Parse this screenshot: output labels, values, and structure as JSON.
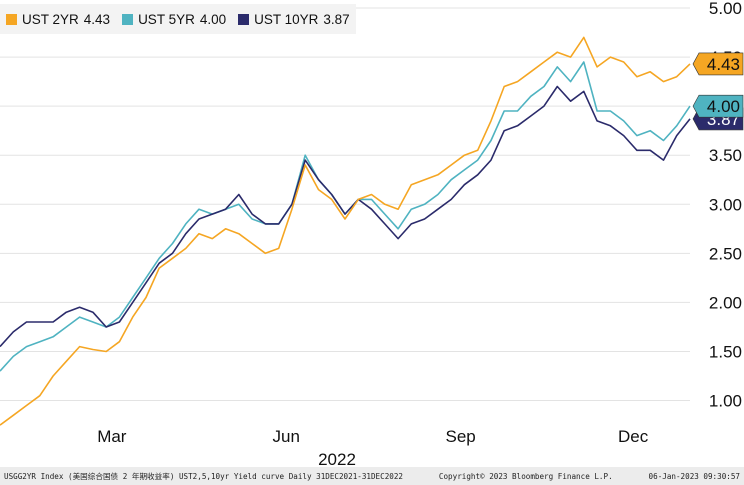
{
  "chart_data": {
    "type": "line",
    "title": "",
    "xlabel": "2022",
    "ylabel": "",
    "ylim": [
      0.7,
      5.0
    ],
    "yticks": [
      1.0,
      1.5,
      2.0,
      2.5,
      3.0,
      3.5,
      4.0,
      4.5,
      5.0
    ],
    "ytick_labels": [
      "1.00",
      "1.50",
      "2.00",
      "2.50",
      "3.00",
      "3.50",
      "4.00",
      "4.50",
      "5.00"
    ],
    "xlim": [
      "2022-01-01",
      "2022-12-31"
    ],
    "xticks": [
      {
        "label": "Mar",
        "date": "2022-03-01"
      },
      {
        "label": "Jun",
        "date": "2022-06-01"
      },
      {
        "label": "Sep",
        "date": "2022-09-01"
      },
      {
        "label": "Dec",
        "date": "2022-12-01"
      }
    ],
    "grid": "horizontal",
    "legend_position": "top-left",
    "series": [
      {
        "name": "UST 2YR",
        "last": "4.43",
        "color": "#f5a623",
        "points": [
          [
            "2022-01-01",
            0.75
          ],
          [
            "2022-01-08",
            0.85
          ],
          [
            "2022-01-15",
            0.95
          ],
          [
            "2022-01-22",
            1.05
          ],
          [
            "2022-01-29",
            1.25
          ],
          [
            "2022-02-05",
            1.4
          ],
          [
            "2022-02-12",
            1.55
          ],
          [
            "2022-02-19",
            1.52
          ],
          [
            "2022-02-26",
            1.5
          ],
          [
            "2022-03-05",
            1.6
          ],
          [
            "2022-03-12",
            1.85
          ],
          [
            "2022-03-19",
            2.05
          ],
          [
            "2022-03-26",
            2.35
          ],
          [
            "2022-04-02",
            2.45
          ],
          [
            "2022-04-09",
            2.55
          ],
          [
            "2022-04-16",
            2.7
          ],
          [
            "2022-04-23",
            2.65
          ],
          [
            "2022-04-30",
            2.75
          ],
          [
            "2022-05-07",
            2.7
          ],
          [
            "2022-05-14",
            2.6
          ],
          [
            "2022-05-21",
            2.5
          ],
          [
            "2022-05-28",
            2.55
          ],
          [
            "2022-06-04",
            2.95
          ],
          [
            "2022-06-11",
            3.4
          ],
          [
            "2022-06-18",
            3.15
          ],
          [
            "2022-06-25",
            3.05
          ],
          [
            "2022-07-02",
            2.85
          ],
          [
            "2022-07-09",
            3.05
          ],
          [
            "2022-07-16",
            3.1
          ],
          [
            "2022-07-23",
            3.0
          ],
          [
            "2022-07-30",
            2.95
          ],
          [
            "2022-08-06",
            3.2
          ],
          [
            "2022-08-13",
            3.25
          ],
          [
            "2022-08-20",
            3.3
          ],
          [
            "2022-08-27",
            3.4
          ],
          [
            "2022-09-03",
            3.5
          ],
          [
            "2022-09-10",
            3.55
          ],
          [
            "2022-09-17",
            3.85
          ],
          [
            "2022-09-24",
            4.2
          ],
          [
            "2022-10-01",
            4.25
          ],
          [
            "2022-10-08",
            4.35
          ],
          [
            "2022-10-15",
            4.45
          ],
          [
            "2022-10-22",
            4.55
          ],
          [
            "2022-10-29",
            4.5
          ],
          [
            "2022-11-05",
            4.7
          ],
          [
            "2022-11-12",
            4.4
          ],
          [
            "2022-11-19",
            4.5
          ],
          [
            "2022-11-26",
            4.45
          ],
          [
            "2022-12-03",
            4.3
          ],
          [
            "2022-12-10",
            4.35
          ],
          [
            "2022-12-17",
            4.25
          ],
          [
            "2022-12-24",
            4.3
          ],
          [
            "2022-12-31",
            4.43
          ]
        ]
      },
      {
        "name": "UST 5YR",
        "last": "4.00",
        "color": "#4fb3c1",
        "points": [
          [
            "2022-01-01",
            1.3
          ],
          [
            "2022-01-08",
            1.45
          ],
          [
            "2022-01-15",
            1.55
          ],
          [
            "2022-01-22",
            1.6
          ],
          [
            "2022-01-29",
            1.65
          ],
          [
            "2022-02-05",
            1.75
          ],
          [
            "2022-02-12",
            1.85
          ],
          [
            "2022-02-19",
            1.8
          ],
          [
            "2022-02-26",
            1.75
          ],
          [
            "2022-03-05",
            1.85
          ],
          [
            "2022-03-12",
            2.05
          ],
          [
            "2022-03-19",
            2.25
          ],
          [
            "2022-03-26",
            2.45
          ],
          [
            "2022-04-02",
            2.6
          ],
          [
            "2022-04-09",
            2.8
          ],
          [
            "2022-04-16",
            2.95
          ],
          [
            "2022-04-23",
            2.9
          ],
          [
            "2022-04-30",
            2.95
          ],
          [
            "2022-05-07",
            3.0
          ],
          [
            "2022-05-14",
            2.85
          ],
          [
            "2022-05-21",
            2.8
          ],
          [
            "2022-05-28",
            2.8
          ],
          [
            "2022-06-04",
            3.0
          ],
          [
            "2022-06-11",
            3.5
          ],
          [
            "2022-06-18",
            3.25
          ],
          [
            "2022-06-25",
            3.1
          ],
          [
            "2022-07-02",
            2.9
          ],
          [
            "2022-07-09",
            3.05
          ],
          [
            "2022-07-16",
            3.05
          ],
          [
            "2022-07-23",
            2.9
          ],
          [
            "2022-07-30",
            2.75
          ],
          [
            "2022-08-06",
            2.95
          ],
          [
            "2022-08-13",
            3.0
          ],
          [
            "2022-08-20",
            3.1
          ],
          [
            "2022-08-27",
            3.25
          ],
          [
            "2022-09-03",
            3.35
          ],
          [
            "2022-09-10",
            3.45
          ],
          [
            "2022-09-17",
            3.65
          ],
          [
            "2022-09-24",
            3.95
          ],
          [
            "2022-10-01",
            3.95
          ],
          [
            "2022-10-08",
            4.1
          ],
          [
            "2022-10-15",
            4.2
          ],
          [
            "2022-10-22",
            4.4
          ],
          [
            "2022-10-29",
            4.25
          ],
          [
            "2022-11-05",
            4.45
          ],
          [
            "2022-11-12",
            3.95
          ],
          [
            "2022-11-19",
            3.95
          ],
          [
            "2022-11-26",
            3.85
          ],
          [
            "2022-12-03",
            3.7
          ],
          [
            "2022-12-10",
            3.75
          ],
          [
            "2022-12-17",
            3.65
          ],
          [
            "2022-12-24",
            3.8
          ],
          [
            "2022-12-31",
            4.0
          ]
        ]
      },
      {
        "name": "UST 10YR",
        "last": "3.87",
        "color": "#2b2b6b",
        "points": [
          [
            "2022-01-01",
            1.55
          ],
          [
            "2022-01-08",
            1.7
          ],
          [
            "2022-01-15",
            1.8
          ],
          [
            "2022-01-22",
            1.8
          ],
          [
            "2022-01-29",
            1.8
          ],
          [
            "2022-02-05",
            1.9
          ],
          [
            "2022-02-12",
            1.95
          ],
          [
            "2022-02-19",
            1.9
          ],
          [
            "2022-02-26",
            1.75
          ],
          [
            "2022-03-05",
            1.8
          ],
          [
            "2022-03-12",
            2.0
          ],
          [
            "2022-03-19",
            2.2
          ],
          [
            "2022-03-26",
            2.4
          ],
          [
            "2022-04-02",
            2.5
          ],
          [
            "2022-04-09",
            2.7
          ],
          [
            "2022-04-16",
            2.85
          ],
          [
            "2022-04-23",
            2.9
          ],
          [
            "2022-04-30",
            2.95
          ],
          [
            "2022-05-07",
            3.1
          ],
          [
            "2022-05-14",
            2.9
          ],
          [
            "2022-05-21",
            2.8
          ],
          [
            "2022-05-28",
            2.8
          ],
          [
            "2022-06-04",
            3.0
          ],
          [
            "2022-06-11",
            3.45
          ],
          [
            "2022-06-18",
            3.25
          ],
          [
            "2022-06-25",
            3.1
          ],
          [
            "2022-07-02",
            2.9
          ],
          [
            "2022-07-09",
            3.05
          ],
          [
            "2022-07-16",
            2.95
          ],
          [
            "2022-07-23",
            2.8
          ],
          [
            "2022-07-30",
            2.65
          ],
          [
            "2022-08-06",
            2.8
          ],
          [
            "2022-08-13",
            2.85
          ],
          [
            "2022-08-20",
            2.95
          ],
          [
            "2022-08-27",
            3.05
          ],
          [
            "2022-09-03",
            3.2
          ],
          [
            "2022-09-10",
            3.3
          ],
          [
            "2022-09-17",
            3.45
          ],
          [
            "2022-09-24",
            3.75
          ],
          [
            "2022-10-01",
            3.8
          ],
          [
            "2022-10-08",
            3.9
          ],
          [
            "2022-10-15",
            4.0
          ],
          [
            "2022-10-22",
            4.2
          ],
          [
            "2022-10-29",
            4.05
          ],
          [
            "2022-11-05",
            4.15
          ],
          [
            "2022-11-12",
            3.85
          ],
          [
            "2022-11-19",
            3.8
          ],
          [
            "2022-11-26",
            3.7
          ],
          [
            "2022-12-03",
            3.55
          ],
          [
            "2022-12-10",
            3.55
          ],
          [
            "2022-12-17",
            3.45
          ],
          [
            "2022-12-24",
            3.7
          ],
          [
            "2022-12-31",
            3.87
          ]
        ]
      }
    ]
  },
  "legend": [
    {
      "label": "UST 2YR",
      "value": "4.43",
      "color": "#f5a623"
    },
    {
      "label": "UST 5YR",
      "value": "4.00",
      "color": "#4fb3c1"
    },
    {
      "label": "UST 10YR",
      "value": "3.87",
      "color": "#2b2b6b"
    }
  ],
  "footer": {
    "index": "USGG2YR Index (美国综合国债 2 年期收益率) UST2,5,10yr Yield curve  Daily 31DEC2021-31DEC2022",
    "copyright": "Copyright© 2023 Bloomberg Finance L.P.",
    "timestamp": "06-Jan-2023 09:30:57"
  }
}
